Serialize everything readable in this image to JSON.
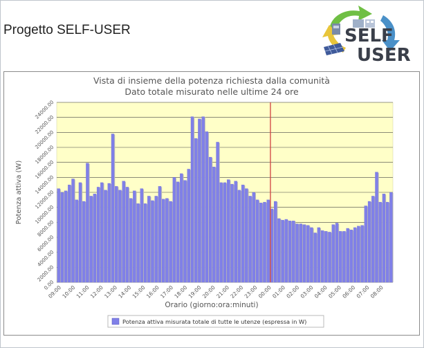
{
  "page": {
    "title": "Progetto SELF-USER"
  },
  "logo": {
    "line1": "SELF",
    "line2": "USER"
  },
  "chart_data": {
    "type": "bar",
    "title": "Vista di insieme della potenza richiesta dalla comunità",
    "subtitle": "Dato totale misurato nelle ultime 24 ore",
    "xlabel": "Orario (giorno:ora:minuti)",
    "ylabel": "Potenza attiva (W)",
    "ylim": [
      0,
      24000
    ],
    "yticks": [
      "0.00",
      "2000.00",
      "4000.00",
      "6000.00",
      "8000.00",
      "10000.00",
      "12000.00",
      "14000.00",
      "16000.00",
      "18000.00",
      "20000.00",
      "22000.00",
      "24000.00"
    ],
    "xticks": [
      "09:00",
      "10:00",
      "11:00",
      "12:00",
      "13:00",
      "14:00",
      "15:00",
      "16:00",
      "17:00",
      "18:00",
      "19:00",
      "20:00",
      "21:00",
      "22:00",
      "23:00",
      "00:00",
      "01:00",
      "02:00",
      "03:00",
      "04:00",
      "05:00",
      "06:00",
      "07:00",
      "08:00"
    ],
    "current_time_marker": "00:00",
    "legend": "Potenza attiva misurata totale di tutte le utenze (espressa in W)",
    "legend_position": "bottom",
    "grid": true,
    "colors": {
      "bar": "#8080e8",
      "plot_bg": "#ffffc8",
      "marker": "#d04040"
    },
    "values": [
      12500,
      12000,
      12200,
      13000,
      13800,
      11000,
      13300,
      10800,
      15900,
      11500,
      11800,
      12700,
      13300,
      12300,
      13200,
      19800,
      12800,
      12300,
      13500,
      12700,
      11200,
      12200,
      10500,
      12500,
      10500,
      11500,
      10900,
      11500,
      12800,
      11100,
      11200,
      10800,
      14000,
      13400,
      14500,
      13600,
      15100,
      22100,
      19200,
      21800,
      22100,
      20100,
      16700,
      15400,
      18700,
      13300,
      13300,
      13700,
      13100,
      13500,
      12300,
      13000,
      12500,
      11500,
      12000,
      11000,
      10600,
      10700,
      11000,
      9800,
      10800,
      8500,
      8300,
      8400,
      8200,
      8200,
      7800,
      7800,
      7700,
      7600,
      7300,
      6600,
      7300,
      6900,
      6800,
      6700,
      7700,
      7900,
      6800,
      6800,
      7200,
      7000,
      7300,
      7500,
      7600,
      10200,
      10800,
      11500,
      14700,
      10700,
      11800,
      10700,
      12000
    ]
  }
}
